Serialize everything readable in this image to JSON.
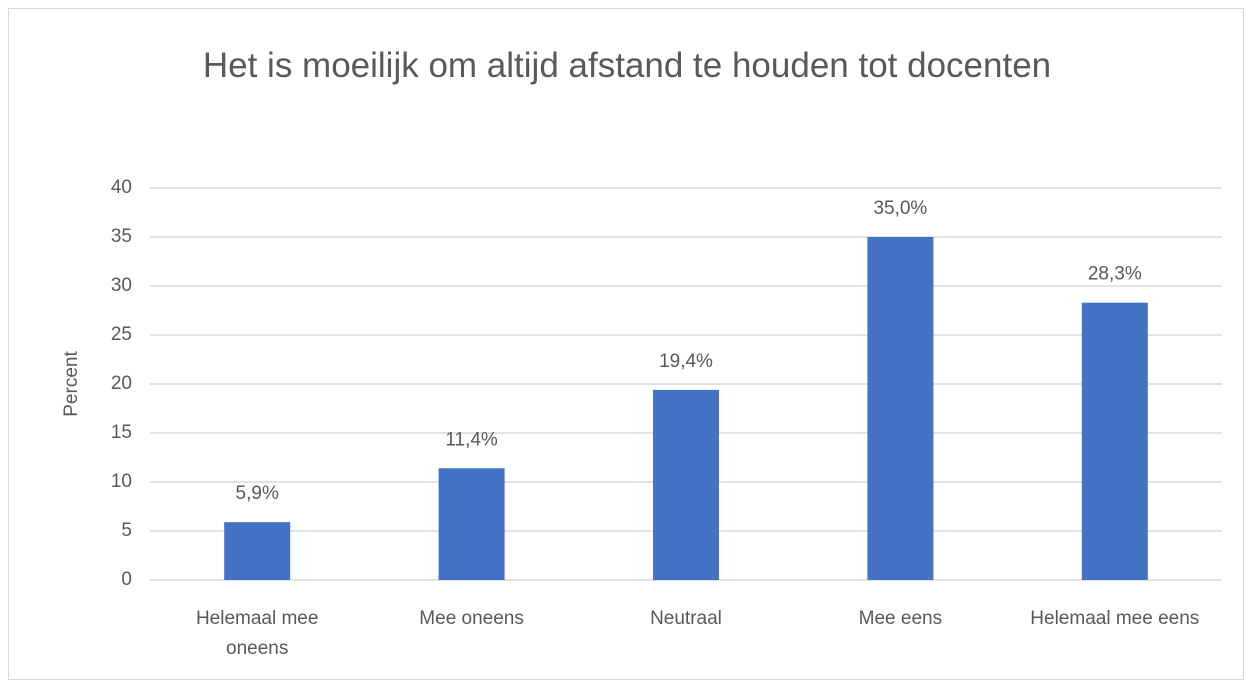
{
  "chart_data": {
    "type": "bar",
    "title": "Het is moeilijk om altijd afstand te houden tot docenten",
    "y_label": "Percent",
    "categories": [
      "Helemaal mee oneens",
      "Mee oneens",
      "Neutraal",
      "Mee eens",
      "Helemaal mee eens"
    ],
    "values": [
      5.9,
      11.4,
      19.4,
      35.0,
      28.3
    ],
    "value_labels": [
      "5,9%",
      "11,4%",
      "19,4%",
      "35,0%",
      "28,3%"
    ],
    "color": "#4472c4",
    "ylim": [
      0,
      40
    ],
    "yticks": [
      0,
      5,
      10,
      15,
      20,
      25,
      30,
      35,
      40
    ],
    "grid": true
  }
}
